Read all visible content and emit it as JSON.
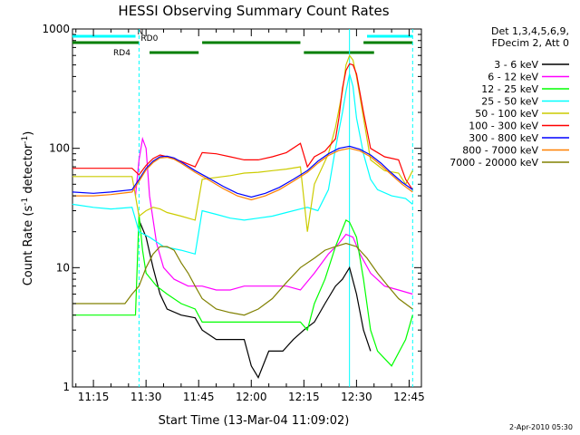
{
  "chart_data": {
    "type": "line",
    "title": "HESSI Observing Summary Count Rates",
    "xlabel": "Start Time (13-Mar-04 11:09:02)",
    "ylabel_main": "Count Rate (s",
    "ylabel_sup1": "-1",
    "ylabel_mid": " detector",
    "ylabel_sup2": "-1",
    "ylabel_end": ")",
    "yscale": "log",
    "ylim": [
      1,
      1000
    ],
    "xlim": [
      "11:09:02",
      "12:48:30"
    ],
    "x_ticks": [
      "11:15",
      "11:30",
      "11:45",
      "12:00",
      "12:15",
      "12:30",
      "12:45"
    ],
    "y_ticks": [
      "1",
      "10",
      "100",
      "1000"
    ],
    "legend_header": [
      "Det 1,3,4,5,6,9,",
      "FDecim 2, Att 0"
    ],
    "legend_placement": "right",
    "footer_date": "2-Apr-2010 05:30",
    "flag_bars": [
      {
        "label": "N",
        "color": "#00ffff",
        "segments": [
          [
            "11:09",
            "11:27"
          ],
          [
            "12:33",
            "12:46"
          ]
        ]
      },
      {
        "label": "RD0",
        "color": "#007f00",
        "segments": [
          [
            "11:09",
            "11:28"
          ],
          [
            "11:46",
            "12:14"
          ],
          [
            "12:32",
            "12:46"
          ]
        ]
      },
      {
        "label": "RD4",
        "color": "#007f00",
        "segments": [
          [
            "11:31",
            "11:45"
          ],
          [
            "12:15",
            "12:35"
          ]
        ]
      }
    ],
    "event_markers": [
      {
        "time": "11:28",
        "color": "#00ffff",
        "style": "dashed"
      },
      {
        "time": "12:28",
        "color": "#00ffff",
        "style": "solid"
      },
      {
        "time": "12:46",
        "color": "#00ffff",
        "style": "dashed"
      }
    ],
    "series": [
      {
        "name": "3 - 6 keV",
        "color": "#000000",
        "points": [
          [
            "11:28",
            25
          ],
          [
            "11:30",
            18
          ],
          [
            "11:32",
            10
          ],
          [
            "11:34",
            6
          ],
          [
            "11:36",
            4.5
          ],
          [
            "11:40",
            4
          ],
          [
            "11:44",
            3.8
          ],
          [
            "11:46",
            3
          ],
          [
            "11:50",
            2.5
          ],
          [
            "11:54",
            2.5
          ],
          [
            "11:58",
            2.5
          ],
          [
            "12:00",
            1.5
          ],
          [
            "12:02",
            1.2
          ],
          [
            "12:05",
            2
          ],
          [
            "12:09",
            2
          ],
          [
            "12:12",
            2.5
          ],
          [
            "12:15",
            3
          ],
          [
            "12:18",
            3.5
          ],
          [
            "12:21",
            5
          ],
          [
            "12:24",
            7
          ],
          [
            "12:26",
            8
          ],
          [
            "12:28",
            10
          ],
          [
            "12:30",
            6
          ],
          [
            "12:32",
            3
          ],
          [
            "12:34",
            2
          ]
        ]
      },
      {
        "name": "6 - 12 keV",
        "color": "#ff00ff",
        "points": [
          [
            "11:27",
            40
          ],
          [
            "11:28",
            80
          ],
          [
            "11:29",
            120
          ],
          [
            "11:30",
            100
          ],
          [
            "11:31",
            40
          ],
          [
            "11:33",
            16
          ],
          [
            "11:35",
            10
          ],
          [
            "11:38",
            8
          ],
          [
            "11:42",
            7
          ],
          [
            "11:46",
            7
          ],
          [
            "11:50",
            6.5
          ],
          [
            "11:54",
            6.5
          ],
          [
            "11:58",
            7
          ],
          [
            "12:02",
            7
          ],
          [
            "12:06",
            7
          ],
          [
            "12:10",
            7
          ],
          [
            "12:14",
            6.5
          ],
          [
            "12:18",
            9
          ],
          [
            "12:22",
            13
          ],
          [
            "12:25",
            16
          ],
          [
            "12:27",
            19
          ],
          [
            "12:29",
            18
          ],
          [
            "12:31",
            13
          ],
          [
            "12:34",
            9
          ],
          [
            "12:38",
            7
          ],
          [
            "12:42",
            6.5
          ],
          [
            "12:46",
            6
          ]
        ]
      },
      {
        "name": "12 - 25 keV",
        "color": "#00ff00",
        "points": [
          [
            "11:09",
            4
          ],
          [
            "11:20",
            4
          ],
          [
            "11:27",
            4
          ],
          [
            "11:28",
            28
          ],
          [
            "11:29",
            14
          ],
          [
            "11:30",
            9
          ],
          [
            "11:33",
            7
          ],
          [
            "11:36",
            6
          ],
          [
            "11:40",
            5
          ],
          [
            "11:44",
            4.5
          ],
          [
            "11:46",
            3.5
          ],
          [
            "11:50",
            3.5
          ],
          [
            "11:55",
            3.5
          ],
          [
            "12:00",
            3.5
          ],
          [
            "12:05",
            3.5
          ],
          [
            "12:10",
            3.5
          ],
          [
            "12:14",
            3.5
          ],
          [
            "12:16",
            3
          ],
          [
            "12:18",
            5
          ],
          [
            "12:21",
            8
          ],
          [
            "12:24",
            15
          ],
          [
            "12:27",
            25
          ],
          [
            "12:28",
            24
          ],
          [
            "12:30",
            18
          ],
          [
            "12:32",
            8
          ],
          [
            "12:34",
            3
          ],
          [
            "12:36",
            2
          ],
          [
            "12:40",
            1.5
          ],
          [
            "12:44",
            2.5
          ],
          [
            "12:46",
            4
          ]
        ]
      },
      {
        "name": "25 - 50 keV",
        "color": "#00ffff",
        "points": [
          [
            "11:09",
            34
          ],
          [
            "11:15",
            32
          ],
          [
            "11:20",
            31
          ],
          [
            "11:26",
            32
          ],
          [
            "11:28",
            20
          ],
          [
            "11:31",
            18
          ],
          [
            "11:35",
            15
          ],
          [
            "11:40",
            14
          ],
          [
            "11:44",
            13
          ],
          [
            "11:46",
            30
          ],
          [
            "11:50",
            28
          ],
          [
            "11:54",
            26
          ],
          [
            "11:58",
            25
          ],
          [
            "12:02",
            26
          ],
          [
            "12:06",
            27
          ],
          [
            "12:10",
            29
          ],
          [
            "12:14",
            31
          ],
          [
            "12:16",
            32
          ],
          [
            "12:19",
            30
          ],
          [
            "12:22",
            45
          ],
          [
            "12:24",
            100
          ],
          [
            "12:26",
            200
          ],
          [
            "12:27",
            300
          ],
          [
            "12:28",
            420
          ],
          [
            "12:29",
            330
          ],
          [
            "12:30",
            180
          ],
          [
            "12:32",
            90
          ],
          [
            "12:34",
            55
          ],
          [
            "12:36",
            45
          ],
          [
            "12:40",
            40
          ],
          [
            "12:44",
            38
          ],
          [
            "12:46",
            34
          ]
        ]
      },
      {
        "name": "50 - 100 keV",
        "color": "#cccc00",
        "points": [
          [
            "11:09",
            58
          ],
          [
            "11:15",
            58
          ],
          [
            "11:20",
            58
          ],
          [
            "11:26",
            58
          ],
          [
            "11:28",
            27
          ],
          [
            "11:30",
            30
          ],
          [
            "11:32",
            32
          ],
          [
            "11:34",
            31
          ],
          [
            "11:36",
            29
          ],
          [
            "11:40",
            27
          ],
          [
            "11:44",
            25
          ],
          [
            "11:46",
            55
          ],
          [
            "11:50",
            57
          ],
          [
            "11:54",
            59
          ],
          [
            "11:58",
            62
          ],
          [
            "12:02",
            63
          ],
          [
            "12:06",
            65
          ],
          [
            "12:10",
            67
          ],
          [
            "12:14",
            70
          ],
          [
            "12:16",
            20
          ],
          [
            "12:18",
            50
          ],
          [
            "12:22",
            90
          ],
          [
            "12:24",
            150
          ],
          [
            "12:26",
            300
          ],
          [
            "12:27",
            500
          ],
          [
            "12:28",
            600
          ],
          [
            "12:29",
            550
          ],
          [
            "12:30",
            400
          ],
          [
            "12:32",
            180
          ],
          [
            "12:34",
            80
          ],
          [
            "12:38",
            65
          ],
          [
            "12:42",
            62
          ],
          [
            "12:44",
            50
          ],
          [
            "12:46",
            65
          ]
        ]
      },
      {
        "name": "100 - 300 keV",
        "color": "#ff0000",
        "points": [
          [
            "11:09",
            68
          ],
          [
            "11:15",
            68
          ],
          [
            "11:20",
            68
          ],
          [
            "11:26",
            68
          ],
          [
            "11:28",
            60
          ],
          [
            "11:30",
            72
          ],
          [
            "11:32",
            82
          ],
          [
            "11:34",
            88
          ],
          [
            "11:36",
            85
          ],
          [
            "11:40",
            78
          ],
          [
            "11:44",
            70
          ],
          [
            "11:46",
            92
          ],
          [
            "11:50",
            90
          ],
          [
            "11:54",
            85
          ],
          [
            "11:58",
            80
          ],
          [
            "12:02",
            80
          ],
          [
            "12:06",
            85
          ],
          [
            "12:10",
            92
          ],
          [
            "12:14",
            110
          ],
          [
            "12:16",
            70
          ],
          [
            "12:18",
            85
          ],
          [
            "12:21",
            95
          ],
          [
            "12:24",
            120
          ],
          [
            "12:25",
            180
          ],
          [
            "12:26",
            320
          ],
          [
            "12:27",
            450
          ],
          [
            "12:28",
            510
          ],
          [
            "12:29",
            500
          ],
          [
            "12:30",
            420
          ],
          [
            "12:32",
            200
          ],
          [
            "12:34",
            100
          ],
          [
            "12:38",
            85
          ],
          [
            "12:42",
            80
          ],
          [
            "12:44",
            55
          ],
          [
            "12:46",
            45
          ]
        ]
      },
      {
        "name": "300 - 800 keV",
        "color": "#0000ff",
        "points": [
          [
            "11:09",
            43
          ],
          [
            "11:15",
            42
          ],
          [
            "11:20",
            43
          ],
          [
            "11:26",
            45
          ],
          [
            "11:28",
            55
          ],
          [
            "11:30",
            68
          ],
          [
            "11:32",
            78
          ],
          [
            "11:34",
            85
          ],
          [
            "11:36",
            86
          ],
          [
            "11:38",
            83
          ],
          [
            "11:40",
            77
          ],
          [
            "11:44",
            65
          ],
          [
            "11:48",
            56
          ],
          [
            "11:52",
            48
          ],
          [
            "11:56",
            42
          ],
          [
            "12:00",
            39
          ],
          [
            "12:04",
            42
          ],
          [
            "12:08",
            47
          ],
          [
            "12:12",
            55
          ],
          [
            "12:16",
            65
          ],
          [
            "12:19",
            78
          ],
          [
            "12:22",
            90
          ],
          [
            "12:25",
            100
          ],
          [
            "12:28",
            104
          ],
          [
            "12:31",
            98
          ],
          [
            "12:34",
            88
          ],
          [
            "12:37",
            75
          ],
          [
            "12:40",
            62
          ],
          [
            "12:43",
            52
          ],
          [
            "12:46",
            45
          ]
        ]
      },
      {
        "name": "800 - 7000 keV",
        "color": "#ff8000",
        "points": [
          [
            "11:09",
            40
          ],
          [
            "11:15",
            40
          ],
          [
            "11:20",
            41
          ],
          [
            "11:26",
            43
          ],
          [
            "11:28",
            53
          ],
          [
            "11:30",
            66
          ],
          [
            "11:32",
            76
          ],
          [
            "11:34",
            83
          ],
          [
            "11:36",
            84
          ],
          [
            "11:38",
            81
          ],
          [
            "11:40",
            75
          ],
          [
            "11:44",
            63
          ],
          [
            "11:48",
            54
          ],
          [
            "11:52",
            46
          ],
          [
            "11:56",
            40
          ],
          [
            "12:00",
            37
          ],
          [
            "12:04",
            40
          ],
          [
            "12:08",
            45
          ],
          [
            "12:12",
            53
          ],
          [
            "12:16",
            63
          ],
          [
            "12:19",
            75
          ],
          [
            "12:22",
            87
          ],
          [
            "12:25",
            96
          ],
          [
            "12:28",
            100
          ],
          [
            "12:31",
            95
          ],
          [
            "12:34",
            85
          ],
          [
            "12:37",
            72
          ],
          [
            "12:40",
            60
          ],
          [
            "12:43",
            50
          ],
          [
            "12:46",
            43
          ]
        ]
      },
      {
        "name": "7000 - 20000 keV",
        "color": "#808000",
        "points": [
          [
            "11:09",
            5
          ],
          [
            "11:15",
            5
          ],
          [
            "11:20",
            5
          ],
          [
            "11:24",
            5
          ],
          [
            "11:26",
            6
          ],
          [
            "11:28",
            7
          ],
          [
            "11:30",
            10
          ],
          [
            "11:32",
            13
          ],
          [
            "11:34",
            15
          ],
          [
            "11:36",
            15
          ],
          [
            "11:38",
            14
          ],
          [
            "11:40",
            11
          ],
          [
            "11:42",
            9
          ],
          [
            "11:44",
            7
          ],
          [
            "11:46",
            5.5
          ],
          [
            "11:50",
            4.5
          ],
          [
            "11:54",
            4.2
          ],
          [
            "11:58",
            4
          ],
          [
            "12:02",
            4.5
          ],
          [
            "12:06",
            5.5
          ],
          [
            "12:10",
            7.5
          ],
          [
            "12:14",
            10
          ],
          [
            "12:18",
            12
          ],
          [
            "12:21",
            14
          ],
          [
            "12:24",
            15
          ],
          [
            "12:27",
            16
          ],
          [
            "12:30",
            15
          ],
          [
            "12:33",
            12
          ],
          [
            "12:36",
            9
          ],
          [
            "12:39",
            7
          ],
          [
            "12:42",
            5.5
          ],
          [
            "12:46",
            4.5
          ]
        ]
      }
    ]
  }
}
